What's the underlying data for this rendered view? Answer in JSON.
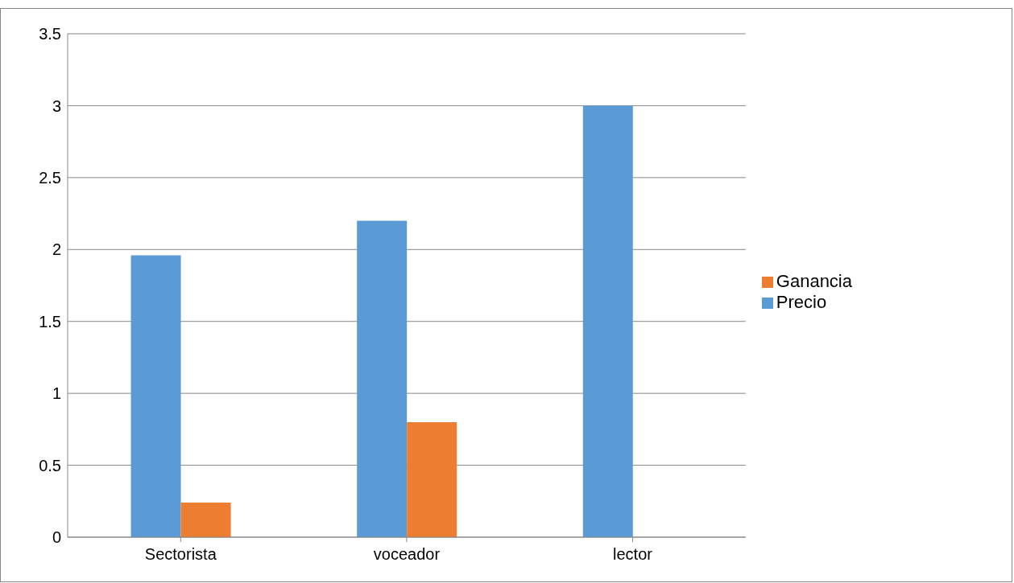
{
  "chart_data": {
    "type": "bar",
    "categories": [
      "Sectorista",
      "voceador",
      "lector"
    ],
    "series": [
      {
        "name": "Precio",
        "color": "#5b9bd5",
        "values": [
          1.96,
          2.2,
          3
        ]
      },
      {
        "name": "Ganancia",
        "color": "#ed7d31",
        "values": [
          0.24,
          0.8,
          null
        ]
      }
    ],
    "ylim": [
      0,
      3.5
    ],
    "yticks": [
      0,
      0.5,
      1,
      1.5,
      2,
      2.5,
      3,
      3.5
    ],
    "grid": "y",
    "legend": "right"
  }
}
